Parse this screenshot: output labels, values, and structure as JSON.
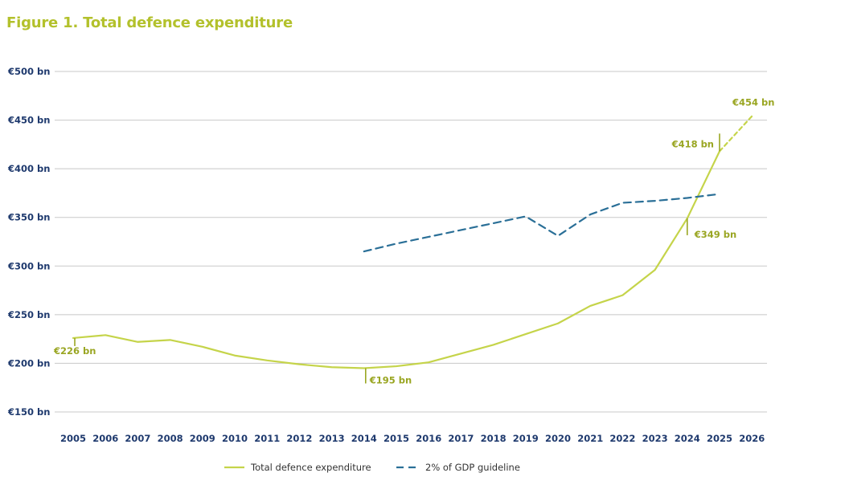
{
  "colors": {
    "title": "#b3c12c",
    "series_total": "#c5d44a",
    "series_gdp": "#2a6f97",
    "axis_text": "#1f3a6e",
    "annotation": "#9aa623",
    "grid": "#c8c8c8"
  },
  "chart_data": {
    "type": "line",
    "title": "Figure 1. Total defence expenditure",
    "xlabel": "",
    "ylabel": "",
    "ylim": [
      150,
      500
    ],
    "ytick_values": [
      500,
      450,
      400,
      350,
      300,
      250,
      200,
      150
    ],
    "ytick_labels": [
      "€500 bn",
      "€450 bn",
      "€400 bn",
      "€350 bn",
      "€300 bn",
      "€250 bn",
      "€200 bn",
      "€150 bn"
    ],
    "categories": [
      "2005",
      "2006",
      "2007",
      "2008",
      "2009",
      "2010",
      "2011",
      "2012",
      "2013",
      "2014",
      "2015",
      "2016",
      "2017",
      "2018",
      "2019",
      "2020",
      "2021",
      "2022",
      "2023",
      "2024",
      "2025",
      "2026"
    ],
    "grid": true,
    "legend_position": "bottom",
    "series": [
      {
        "name": "Total defence expenditure",
        "style": "solid",
        "x": [
          "2005",
          "2006",
          "2007",
          "2008",
          "2009",
          "2010",
          "2011",
          "2012",
          "2013",
          "2014",
          "2015",
          "2016",
          "2017",
          "2018",
          "2019",
          "2020",
          "2021",
          "2022",
          "2023",
          "2024",
          "2025"
        ],
        "values": [
          226,
          229,
          222,
          224,
          217,
          208,
          203,
          199,
          196,
          195,
          197,
          201,
          210,
          219,
          230,
          241,
          259,
          270,
          296,
          349,
          418
        ],
        "projection": {
          "x": [
            "2025",
            "2026"
          ],
          "values": [
            418,
            454
          ]
        }
      },
      {
        "name": "2% of GDP guideline",
        "style": "dashed",
        "x": [
          "2014",
          "2015",
          "2016",
          "2017",
          "2018",
          "2019",
          "2020",
          "2021",
          "2022",
          "2023",
          "2024",
          "2025"
        ],
        "values": [
          315,
          323,
          330,
          337,
          344,
          351,
          331,
          353,
          365,
          367,
          370,
          374
        ]
      }
    ],
    "annotations": [
      {
        "text": "€226 bn",
        "x": "2005",
        "value": 226
      },
      {
        "text": "€195 bn",
        "x": "2014",
        "value": 195
      },
      {
        "text": "€349 bn",
        "x": "2024",
        "value": 349
      },
      {
        "text": "€418 bn",
        "x": "2025",
        "value": 418
      },
      {
        "text": "€454 bn",
        "x": "2026",
        "value": 454
      }
    ]
  }
}
